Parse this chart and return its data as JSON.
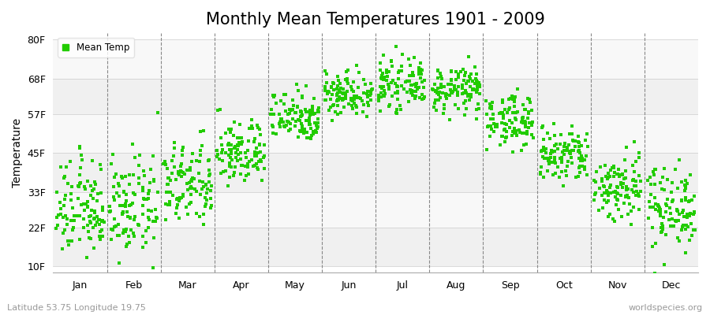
{
  "title": "Monthly Mean Temperatures 1901 - 2009",
  "ylabel": "Temperature",
  "yticks": [
    10,
    22,
    33,
    45,
    57,
    68,
    80
  ],
  "ytick_labels": [
    "10F",
    "22F",
    "33F",
    "45F",
    "57F",
    "68F",
    "80F"
  ],
  "ylim": [
    8,
    82
  ],
  "months": [
    "Jan",
    "Feb",
    "Mar",
    "Apr",
    "May",
    "Jun",
    "Jul",
    "Aug",
    "Sep",
    "Oct",
    "Nov",
    "Dec"
  ],
  "month_tick_positions": [
    0.5,
    1.5,
    2.5,
    3.5,
    4.5,
    5.5,
    6.5,
    7.5,
    8.5,
    9.5,
    10.5,
    11.5
  ],
  "month_boundaries": [
    1.0,
    2.0,
    3.0,
    4.0,
    5.0,
    6.0,
    7.0,
    8.0,
    9.0,
    10.0,
    11.0
  ],
  "xlim": [
    0,
    12
  ],
  "dot_color": "#22cc00",
  "dot_size": 5,
  "background_color": "#ffffff",
  "band_colors": [
    "#f0f0f0",
    "#f8f8f8"
  ],
  "title_fontsize": 15,
  "axis_label_fontsize": 10,
  "tick_fontsize": 9,
  "legend_label": "Mean Temp",
  "footer_left": "Latitude 53.75 Longitude 19.75",
  "footer_right": "worldspecies.org",
  "footer_fontsize": 8,
  "month_means_F": {
    "Jan": 27.5,
    "Feb": 28.0,
    "Mar": 35.0,
    "Apr": 45.0,
    "May": 56.5,
    "Jun": 63.5,
    "Jul": 66.0,
    "Aug": 64.5,
    "Sep": 55.0,
    "Oct": 44.0,
    "Nov": 34.5,
    "Dec": 28.5
  },
  "month_stds_F": {
    "Jan": 7.5,
    "Feb": 7.5,
    "Mar": 6.5,
    "Apr": 5.0,
    "May": 4.0,
    "Jun": 3.5,
    "Jul": 3.5,
    "Aug": 3.5,
    "Sep": 4.0,
    "Oct": 4.5,
    "Nov": 5.5,
    "Dec": 6.5
  }
}
